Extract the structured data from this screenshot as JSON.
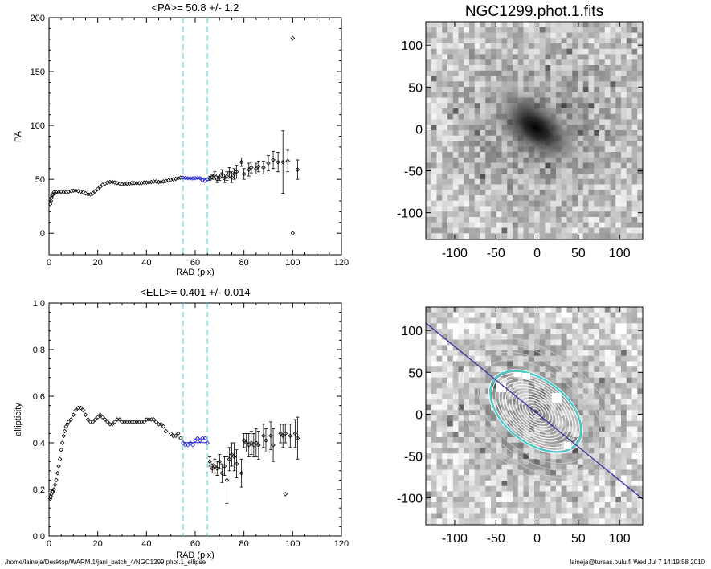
{
  "colors": {
    "axis": "#000000",
    "marker": "#000000",
    "fit_marker": "#1a1acc",
    "guide": "#66dddd",
    "major_axis_line": "#2a2aa0",
    "contour": "#ffffff",
    "fit_ellipse": "#44cccc"
  },
  "footer": {
    "left": "/home/laineja/Desktop/WARM.1/jani_batch_4/NGC1299.phot.1_ellipse",
    "right": "laineja@tursas.oulu.fi  Wed Jul  7 14:19:58 2010"
  },
  "chart_data": [
    {
      "id": "pa",
      "type": "scatter",
      "title": "<PA>=  50.8 +/-   1.2",
      "xlabel": "RAD (pix)",
      "ylabel": "PA",
      "xlim": [
        0,
        120
      ],
      "ylim": [
        -20,
        200
      ],
      "xticks": [
        0,
        20,
        40,
        60,
        80,
        100,
        120
      ],
      "yticks": [
        0,
        50,
        100,
        150,
        200
      ],
      "guides_x": [
        55,
        65
      ],
      "fit_range": [
        55,
        65
      ],
      "fit_value": 50.8,
      "points": [
        [
          0.5,
          27
        ],
        [
          0.8,
          30
        ],
        [
          1,
          33
        ],
        [
          1.3,
          35
        ],
        [
          1.6,
          36
        ],
        [
          2,
          38
        ],
        [
          2.5,
          37
        ],
        [
          3,
          38
        ],
        [
          4,
          38
        ],
        [
          5,
          38.5
        ],
        [
          6,
          38
        ],
        [
          7,
          38
        ],
        [
          8,
          38.5
        ],
        [
          9,
          39
        ],
        [
          10,
          39.5
        ],
        [
          11,
          39.5
        ],
        [
          12,
          39
        ],
        [
          13,
          38.5
        ],
        [
          14,
          38
        ],
        [
          15,
          37
        ],
        [
          16,
          36
        ],
        [
          17,
          36
        ],
        [
          18,
          37
        ],
        [
          19,
          39
        ],
        [
          20,
          41
        ],
        [
          21,
          43
        ],
        [
          22,
          45
        ],
        [
          23,
          46
        ],
        [
          24,
          47
        ],
        [
          25,
          47.5
        ],
        [
          26,
          47.5
        ],
        [
          27,
          47
        ],
        [
          28,
          46.5
        ],
        [
          29,
          46
        ],
        [
          30,
          45.5
        ],
        [
          31,
          45.5
        ],
        [
          32,
          46
        ],
        [
          33,
          46
        ],
        [
          34,
          46.5
        ],
        [
          35,
          46.5
        ],
        [
          36,
          46.5
        ],
        [
          37,
          46.5
        ],
        [
          38,
          46.5
        ],
        [
          39,
          47
        ],
        [
          40,
          47
        ],
        [
          41,
          47
        ],
        [
          42,
          47.5
        ],
        [
          43,
          48
        ],
        [
          44,
          48
        ],
        [
          45,
          47.5
        ],
        [
          46,
          47.5
        ],
        [
          47,
          48
        ],
        [
          48,
          48.5
        ],
        [
          49,
          49
        ],
        [
          50,
          49.5
        ],
        [
          51,
          50
        ],
        [
          52,
          50.5
        ],
        [
          53,
          51
        ],
        [
          54,
          51.5
        ]
      ],
      "fit_points": [
        [
          55,
          51.5
        ],
        [
          56,
          51.2
        ],
        [
          57,
          51
        ],
        [
          58,
          51
        ],
        [
          59,
          50.8
        ],
        [
          60,
          51
        ],
        [
          61,
          51.3
        ],
        [
          62,
          51
        ],
        [
          63,
          49
        ],
        [
          64,
          48.5
        ],
        [
          65,
          50
        ]
      ],
      "err_points": [
        {
          "x": 66,
          "y": 51,
          "e": 2
        },
        {
          "x": 67,
          "y": 52,
          "e": 2
        },
        {
          "x": 68,
          "y": 54,
          "e": 3
        },
        {
          "x": 69,
          "y": 50,
          "e": 3
        },
        {
          "x": 70,
          "y": 52,
          "e": 3
        },
        {
          "x": 71,
          "y": 55,
          "e": 4
        },
        {
          "x": 72,
          "y": 51,
          "e": 4
        },
        {
          "x": 73,
          "y": 53,
          "e": 4
        },
        {
          "x": 74,
          "y": 56,
          "e": 5
        },
        {
          "x": 75,
          "y": 52,
          "e": 5
        },
        {
          "x": 76,
          "y": 55,
          "e": 5
        },
        {
          "x": 77,
          "y": 57,
          "e": 6
        },
        {
          "x": 79,
          "y": 66,
          "e": 4
        },
        {
          "x": 80,
          "y": 55,
          "e": 5
        },
        {
          "x": 82,
          "y": 59,
          "e": 6
        },
        {
          "x": 83,
          "y": 61,
          "e": 5
        },
        {
          "x": 85,
          "y": 60,
          "e": 5
        },
        {
          "x": 86,
          "y": 62,
          "e": 5
        },
        {
          "x": 88,
          "y": 61,
          "e": 6
        },
        {
          "x": 90,
          "y": 65,
          "e": 7
        },
        {
          "x": 92,
          "y": 68,
          "e": 8
        },
        {
          "x": 94,
          "y": 66,
          "e": 9
        },
        {
          "x": 96,
          "y": 66,
          "e": 29
        },
        {
          "x": 98,
          "y": 67,
          "e": 10
        },
        {
          "x": 102,
          "y": 59,
          "e": 9
        }
      ],
      "outliers": [
        [
          100,
          181
        ],
        [
          100,
          0
        ]
      ]
    },
    {
      "id": "ell",
      "type": "scatter",
      "title": "<ELL>= 0.401 +/-  0.014",
      "xlabel": "RAD (pix)",
      "ylabel": "ellipticity",
      "xlim": [
        0,
        120
      ],
      "ylim": [
        0,
        1
      ],
      "xticks": [
        0,
        20,
        40,
        60,
        80,
        100,
        120
      ],
      "yticks": [
        0.0,
        0.2,
        0.4,
        0.6,
        0.8,
        1.0
      ],
      "guides_x": [
        55,
        65
      ],
      "fit_range": [
        55,
        65
      ],
      "fit_value": 0.401,
      "points": [
        [
          0.5,
          0.16
        ],
        [
          0.8,
          0.17
        ],
        [
          1,
          0.18
        ],
        [
          1.3,
          0.19
        ],
        [
          1.6,
          0.19
        ],
        [
          2,
          0.2
        ],
        [
          2.5,
          0.22
        ],
        [
          3,
          0.24
        ],
        [
          3.5,
          0.27
        ],
        [
          4,
          0.3
        ],
        [
          4.5,
          0.33
        ],
        [
          5,
          0.37
        ],
        [
          5.5,
          0.4
        ],
        [
          6,
          0.43
        ],
        [
          6.5,
          0.45
        ],
        [
          7,
          0.47
        ],
        [
          7.5,
          0.48
        ],
        [
          8,
          0.49
        ],
        [
          9,
          0.5
        ],
        [
          10,
          0.52
        ],
        [
          11,
          0.54
        ],
        [
          12,
          0.55
        ],
        [
          13,
          0.55
        ],
        [
          14,
          0.54
        ],
        [
          15,
          0.52
        ],
        [
          16,
          0.5
        ],
        [
          17,
          0.49
        ],
        [
          18,
          0.49
        ],
        [
          19,
          0.5
        ],
        [
          20,
          0.51
        ],
        [
          21,
          0.52
        ],
        [
          22,
          0.51
        ],
        [
          23,
          0.5
        ],
        [
          24,
          0.49
        ],
        [
          25,
          0.48
        ],
        [
          26,
          0.48
        ],
        [
          27,
          0.49
        ],
        [
          28,
          0.5
        ],
        [
          29,
          0.5
        ],
        [
          30,
          0.49
        ],
        [
          31,
          0.49
        ],
        [
          32,
          0.49
        ],
        [
          33,
          0.49
        ],
        [
          34,
          0.49
        ],
        [
          35,
          0.49
        ],
        [
          36,
          0.49
        ],
        [
          37,
          0.49
        ],
        [
          38,
          0.49
        ],
        [
          39,
          0.49
        ],
        [
          40,
          0.5
        ],
        [
          41,
          0.5
        ],
        [
          42,
          0.5
        ],
        [
          43,
          0.5
        ],
        [
          44,
          0.49
        ],
        [
          45,
          0.48
        ],
        [
          46,
          0.48
        ],
        [
          47,
          0.47
        ],
        [
          48,
          0.45
        ],
        [
          50,
          0.44
        ],
        [
          51,
          0.43
        ],
        [
          52,
          0.43
        ],
        [
          53,
          0.44
        ],
        [
          54,
          0.42
        ]
      ],
      "fit_points": [
        [
          55,
          0.4
        ],
        [
          56,
          0.39
        ],
        [
          57,
          0.39
        ],
        [
          58,
          0.4
        ],
        [
          59,
          0.39
        ],
        [
          60,
          0.41
        ],
        [
          61,
          0.42
        ],
        [
          62,
          0.41
        ],
        [
          63,
          0.42
        ],
        [
          64,
          0.42
        ],
        [
          65,
          0.4
        ]
      ],
      "err_points": [
        {
          "x": 66,
          "y": 0.32,
          "e": 0.02
        },
        {
          "x": 67,
          "y": 0.29,
          "e": 0.02
        },
        {
          "x": 68,
          "y": 0.3,
          "e": 0.03
        },
        {
          "x": 69,
          "y": 0.29,
          "e": 0.03
        },
        {
          "x": 70,
          "y": 0.32,
          "e": 0.03
        },
        {
          "x": 71,
          "y": 0.27,
          "e": 0.04
        },
        {
          "x": 72,
          "y": 0.3,
          "e": 0.04
        },
        {
          "x": 73,
          "y": 0.24,
          "e": 0.1
        },
        {
          "x": 74,
          "y": 0.33,
          "e": 0.05
        },
        {
          "x": 75,
          "y": 0.35,
          "e": 0.05
        },
        {
          "x": 76,
          "y": 0.34,
          "e": 0.06
        },
        {
          "x": 77,
          "y": 0.31,
          "e": 0.06
        },
        {
          "x": 79,
          "y": 0.27,
          "e": 0.06
        },
        {
          "x": 80,
          "y": 0.41,
          "e": 0.03
        },
        {
          "x": 81,
          "y": 0.4,
          "e": 0.04
        },
        {
          "x": 82,
          "y": 0.39,
          "e": 0.05
        },
        {
          "x": 83,
          "y": 0.4,
          "e": 0.05
        },
        {
          "x": 84,
          "y": 0.39,
          "e": 0.05
        },
        {
          "x": 85,
          "y": 0.4,
          "e": 0.06
        },
        {
          "x": 86,
          "y": 0.39,
          "e": 0.06
        },
        {
          "x": 88,
          "y": 0.43,
          "e": 0.05
        },
        {
          "x": 89,
          "y": 0.41,
          "e": 0.05
        },
        {
          "x": 91,
          "y": 0.43,
          "e": 0.06
        },
        {
          "x": 92,
          "y": 0.39,
          "e": 0.07
        },
        {
          "x": 95,
          "y": 0.44,
          "e": 0.04
        },
        {
          "x": 96,
          "y": 0.43,
          "e": 0.05
        },
        {
          "x": 97,
          "y": 0.44,
          "e": 0.04
        },
        {
          "x": 99,
          "y": 0.43,
          "e": 0.05
        },
        {
          "x": 101,
          "y": 0.44,
          "e": 0.06
        },
        {
          "x": 102,
          "y": 0.42,
          "e": 0.09
        }
      ],
      "outliers": [
        [
          97,
          0.18
        ]
      ]
    },
    {
      "id": "image",
      "type": "heatmap",
      "title": "NGC1299.phot.1.fits",
      "xlim": [
        -135,
        128
      ],
      "ylim": [
        -132,
        128
      ],
      "xticks": [
        -100,
        -50,
        0,
        50,
        100
      ],
      "yticks": [
        100,
        50,
        0,
        -50,
        -100
      ],
      "galaxy_pa_deg": 50.8,
      "galaxy_ellipticity": 0.401
    },
    {
      "id": "contours",
      "type": "heatmap",
      "title": "",
      "xlim": [
        -135,
        128
      ],
      "ylim": [
        -132,
        128
      ],
      "xticks": [
        -100,
        -50,
        0,
        50,
        100
      ],
      "yticks": [
        100,
        50,
        0,
        -50,
        -100
      ],
      "galaxy_pa_deg": 50.8,
      "galaxy_ellipticity": 0.401
    }
  ]
}
